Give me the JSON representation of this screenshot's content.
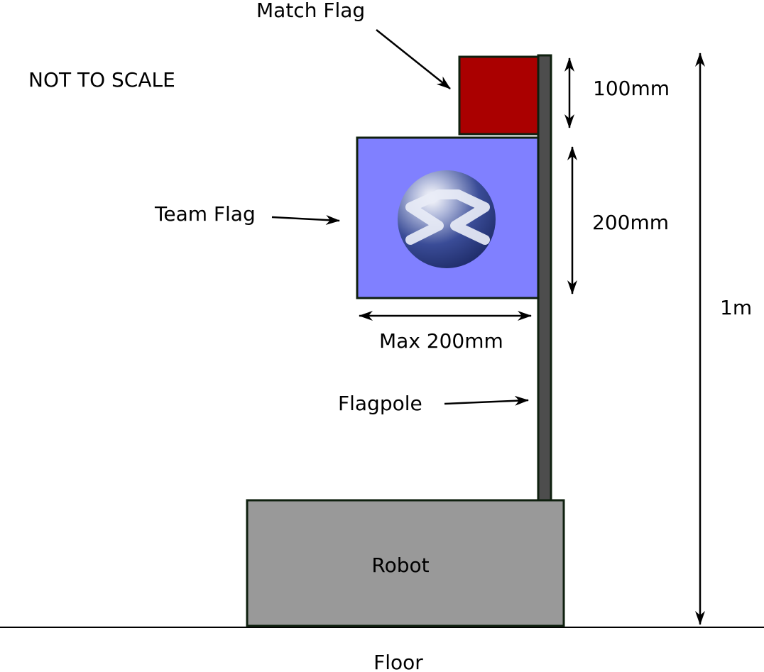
{
  "labels": {
    "match_flag": "Match Flag",
    "not_to_scale": "NOT TO SCALE",
    "team_flag": "Team Flag",
    "flagpole": "Flagpole",
    "robot": "Robot",
    "floor": "Floor"
  },
  "dimensions": {
    "match_flag_height": "100mm",
    "team_flag_height": "200mm",
    "team_flag_width": "Max 200mm",
    "overall_height": "1m"
  },
  "colors": {
    "match_flag": "#aa0000",
    "team_flag": "#8080ff",
    "flagpole": "#4d4d4d",
    "robot": "#999999",
    "outline": "#0f200f",
    "logo_sphere": "#2c3d85"
  },
  "icons": {
    "team_logo": "sphere-chevron-logo"
  }
}
